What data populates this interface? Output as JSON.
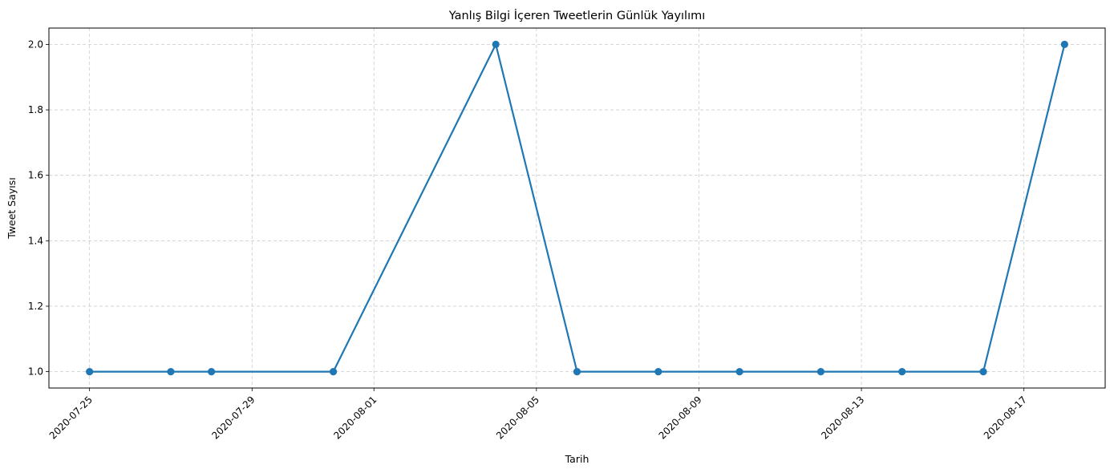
{
  "chart_data": {
    "type": "line",
    "title": "Yanlış Bilgi İçeren Tweetlerin Günlük Yayılımı",
    "xlabel": "Tarih",
    "ylabel": "Tweet Sayısı",
    "x_tick_labels": [
      "2020-07-25",
      "2020-07-29",
      "2020-08-01",
      "2020-08-05",
      "2020-08-09",
      "2020-08-13",
      "2020-08-17"
    ],
    "y_tick_labels": [
      "1.0",
      "1.2",
      "1.4",
      "1.6",
      "1.8",
      "2.0"
    ],
    "xlim": [
      "2020-07-24",
      "2020-08-19"
    ],
    "ylim": [
      0.95,
      2.05
    ],
    "grid": true,
    "grid_style": "dashed",
    "marker": "circle",
    "series": [
      {
        "color": "#1f77b4",
        "x": [
          "2020-07-25",
          "2020-07-27",
          "2020-07-28",
          "2020-07-31",
          "2020-08-04",
          "2020-08-06",
          "2020-08-08",
          "2020-08-10",
          "2020-08-12",
          "2020-08-14",
          "2020-08-16",
          "2020-08-18"
        ],
        "y": [
          1,
          1,
          1,
          1,
          2,
          1,
          1,
          1,
          1,
          1,
          1,
          2
        ]
      }
    ]
  }
}
